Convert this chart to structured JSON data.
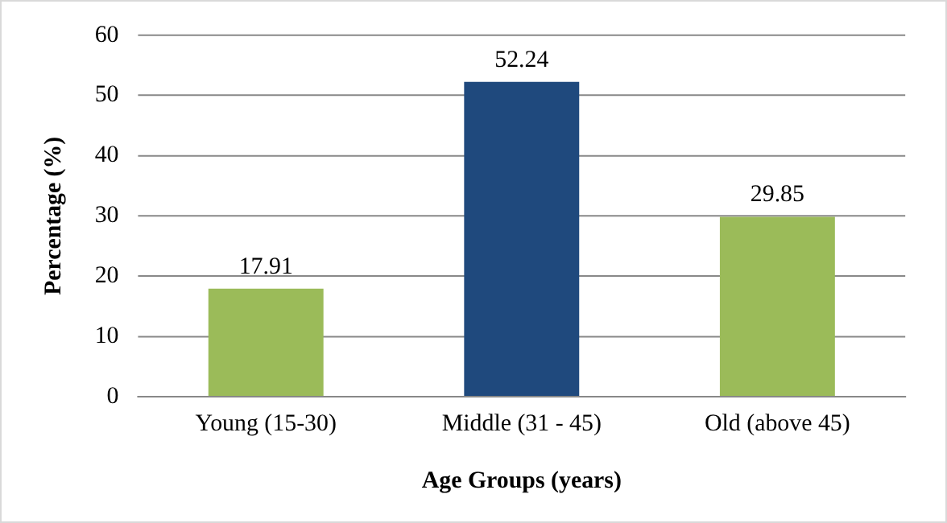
{
  "chart_data": {
    "type": "bar",
    "xlabel": "Age Groups (years)",
    "ylabel": "Percentage (%)",
    "categories": [
      "Young (15-30)",
      "Middle (31 - 45)",
      "Old (above 45)"
    ],
    "values": [
      17.91,
      52.24,
      29.85
    ],
    "colors": [
      "#9bbb59",
      "#1f497d",
      "#9bbb59"
    ],
    "ylim": [
      0,
      60
    ],
    "yticks": [
      0,
      10,
      20,
      30,
      40,
      50,
      60
    ],
    "grid": "y",
    "data_labels": true,
    "legend": false
  }
}
